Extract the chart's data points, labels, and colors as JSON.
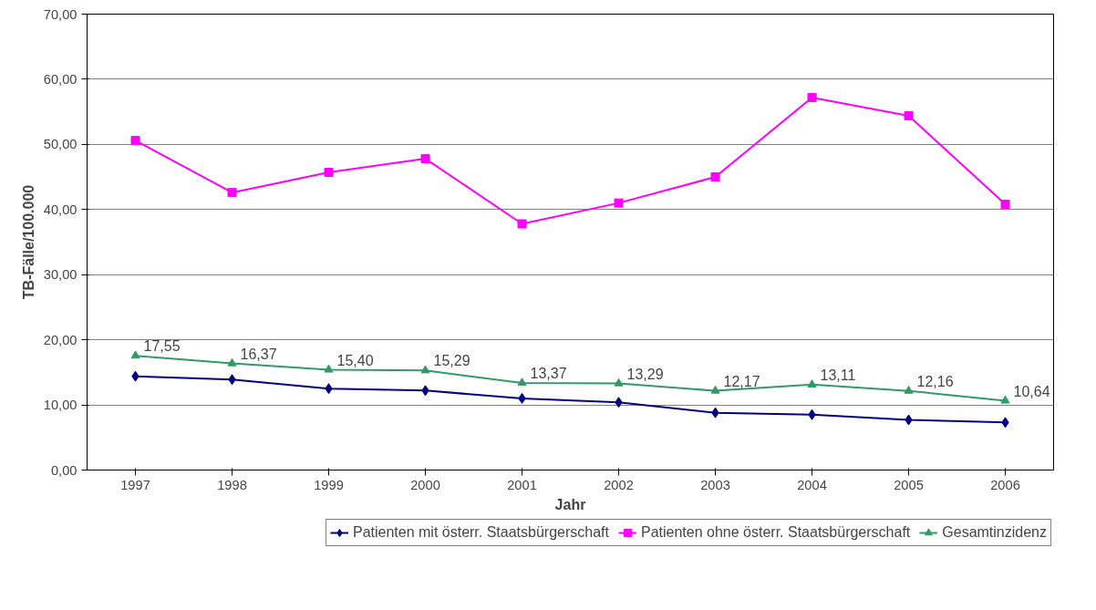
{
  "chart_data": {
    "type": "line",
    "xlabel": "Jahr",
    "ylabel": "TB-Fälle/100.000",
    "categories": [
      "1997",
      "1998",
      "1999",
      "2000",
      "2001",
      "2002",
      "2003",
      "2004",
      "2005",
      "2006"
    ],
    "series": [
      {
        "name": "Patienten mit österr. Staatsbürgerschaft",
        "color": "#000080",
        "marker": "diamond",
        "values": [
          14.4,
          13.9,
          12.5,
          12.2,
          11.0,
          10.4,
          8.8,
          8.5,
          7.7,
          7.3
        ]
      },
      {
        "name": "Patienten ohne österr. Staatsbürgerschaft",
        "color": "#ff00ff",
        "marker": "square",
        "values": [
          50.6,
          42.6,
          45.7,
          47.8,
          37.8,
          41.0,
          45.0,
          57.2,
          54.4,
          40.8
        ]
      },
      {
        "name": "Gesamtinzidenz",
        "color": "#339966",
        "marker": "triangle",
        "values": [
          17.55,
          16.37,
          15.4,
          15.29,
          13.37,
          13.29,
          12.17,
          13.11,
          12.16,
          10.64
        ],
        "value_labels": [
          "17,55",
          "16,37",
          "15,40",
          "15,29",
          "13,37",
          "13,29",
          "12,17",
          "13,11",
          "12,16",
          "10,64"
        ]
      }
    ],
    "ylim": [
      0,
      70
    ],
    "yticks": [
      {
        "value": 0,
        "label": "0,00"
      },
      {
        "value": 10,
        "label": "10,00"
      },
      {
        "value": 20,
        "label": "20,00"
      },
      {
        "value": 30,
        "label": "30,00"
      },
      {
        "value": 40,
        "label": "40,00"
      },
      {
        "value": 50,
        "label": "50,00"
      },
      {
        "value": 60,
        "label": "60,00"
      },
      {
        "value": 70,
        "label": "70,00"
      }
    ],
    "grid": "y",
    "legend": "bottom"
  }
}
